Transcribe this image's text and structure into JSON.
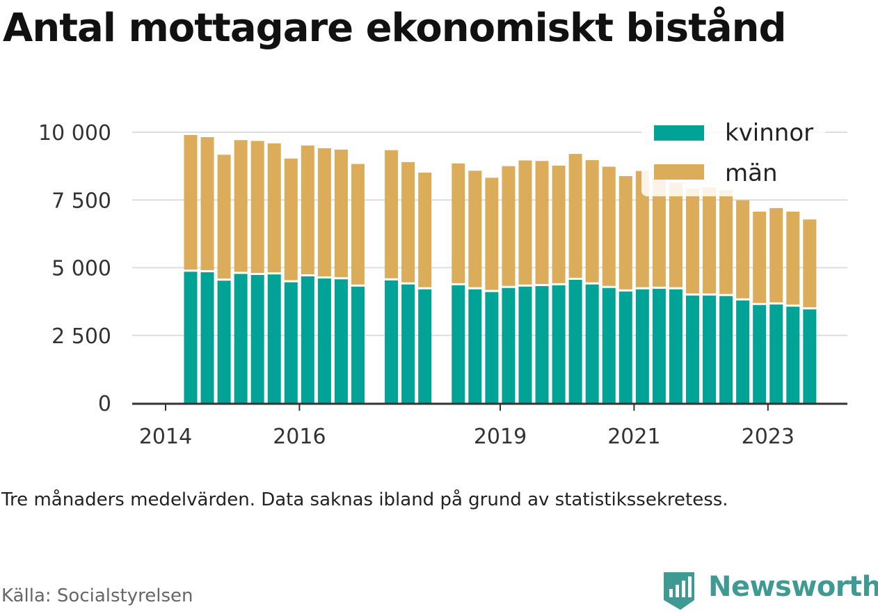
{
  "title": "Antal mottagare ekonomiskt bistånd",
  "note": "Tre månaders medelvärden. Data saknas ibland på grund av statistikssekretess.",
  "source": "Källa: Socialstyrelsen",
  "brand": {
    "name": "Newsworthy",
    "icon": "newsworthy-logo-icon"
  },
  "colors": {
    "kvinnor": "#00a396",
    "man": "#dbac5a",
    "grid": "#dcdce2",
    "axis": "#333333"
  },
  "chart_data": {
    "type": "bar",
    "stacked": true,
    "ylim": [
      0,
      10000
    ],
    "y_ticks": [
      {
        "value": 0,
        "label": "0"
      },
      {
        "value": 2500,
        "label": "2 500"
      },
      {
        "value": 5000,
        "label": "5 000"
      },
      {
        "value": 7500,
        "label": "7 500"
      },
      {
        "value": 10000,
        "label": "10 000"
      }
    ],
    "x_ticks": [
      {
        "index": 0,
        "label": "2014"
      },
      {
        "index": 8,
        "label": "2016"
      },
      {
        "index": 20,
        "label": "2019"
      },
      {
        "index": 28,
        "label": "2021"
      },
      {
        "index": 36,
        "label": "2023"
      }
    ],
    "grid": true,
    "legend_position": "top-right",
    "slots": 39,
    "categories": [
      "1",
      "2",
      "3",
      "4",
      "5",
      "6",
      "7",
      "8",
      "9",
      "10",
      "11",
      "13",
      "14",
      "15",
      "17",
      "18",
      "19",
      "20",
      "21",
      "22",
      "23",
      "24",
      "25",
      "26",
      "27",
      "28",
      "29",
      "30",
      "31",
      "32",
      "33",
      "34",
      "35",
      "36",
      "37",
      "38"
    ],
    "series": [
      {
        "name": "kvinnor",
        "values": [
          4850,
          4830,
          4520,
          4770,
          4730,
          4750,
          4460,
          4680,
          4600,
          4570,
          4300,
          4530,
          4380,
          4200,
          4350,
          4200,
          4100,
          4250,
          4300,
          4320,
          4350,
          4550,
          4380,
          4250,
          4120,
          4200,
          4220,
          4200,
          3970,
          3970,
          3950,
          3790,
          3620,
          3640,
          3560,
          3460
        ]
      },
      {
        "name": "män",
        "values": [
          5050,
          4990,
          4650,
          4940,
          4950,
          4840,
          4570,
          4830,
          4810,
          4790,
          4530,
          4810,
          4520,
          4310,
          4500,
          4380,
          4220,
          4500,
          4660,
          4620,
          4420,
          4650,
          4590,
          4480,
          4260,
          4370,
          4110,
          3930,
          3950,
          4000,
          3910,
          3700,
          3450,
          3560,
          3510,
          3320
        ]
      }
    ]
  }
}
